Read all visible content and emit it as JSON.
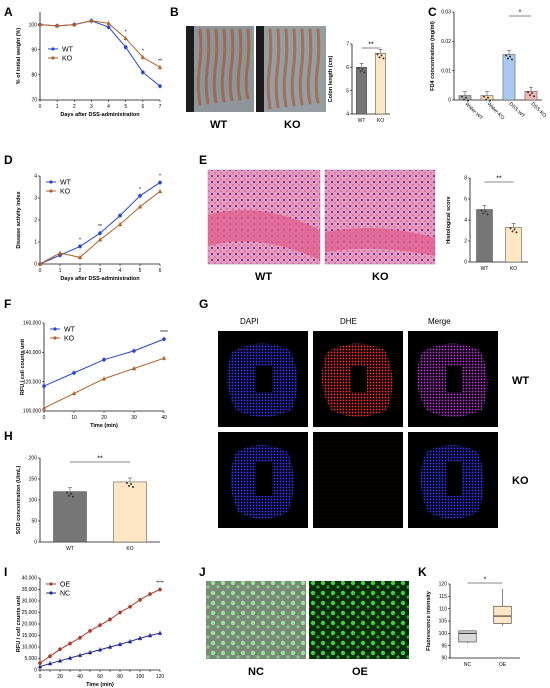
{
  "panels": {
    "A": {
      "label": "A"
    },
    "B": {
      "label": "B"
    },
    "C": {
      "label": "C"
    },
    "D": {
      "label": "D"
    },
    "E": {
      "label": "E"
    },
    "F": {
      "label": "F"
    },
    "G": {
      "label": "G"
    },
    "H": {
      "label": "H"
    },
    "I": {
      "label": "I"
    },
    "J": {
      "label": "J"
    },
    "K": {
      "label": "K"
    }
  },
  "colors": {
    "wt": "#2846c8",
    "ko": "#b0602a",
    "oe": "#a83c2c",
    "nc": "#1e2a90",
    "bar_wt": "#777777",
    "bar_ko": "#fde6c4",
    "dapi": "#2525c8",
    "dhe": "#c83030",
    "merge": "#8a2aa0",
    "he": "#d87aa8",
    "gfp": "#2fb430"
  },
  "photos": {
    "B": {
      "wt_label": "WT",
      "ko_label": "KO"
    },
    "E": {
      "wt_label": "WT",
      "ko_label": "KO"
    },
    "G": {
      "channels": [
        "DAPI",
        "DHE",
        "Merge"
      ],
      "row_labels": [
        "WT",
        "KO"
      ]
    },
    "J": {
      "left_label": "NC",
      "right_label": "OE"
    }
  },
  "chart_data": [
    {
      "id": "A",
      "type": "line",
      "xlabel": "Days after DSS-administration",
      "ylabel": "% of initial weight (%)",
      "x": [
        0,
        1,
        2,
        3,
        4,
        5,
        6,
        7
      ],
      "xlim": [
        0,
        7
      ],
      "ylim": [
        70,
        105
      ],
      "yticks": [
        70,
        80,
        90,
        100
      ],
      "series": [
        {
          "name": "WT",
          "values": [
            100,
            99.5,
            100,
            101.5,
            99,
            91,
            81,
            75.5
          ]
        },
        {
          "name": "KO",
          "values": [
            100,
            99.5,
            100,
            101.5,
            100.5,
            94.5,
            87,
            83
          ]
        }
      ],
      "annotations": [
        {
          "x": 5,
          "text": "*"
        },
        {
          "x": 6,
          "text": "*"
        },
        {
          "x": 7,
          "text": "**"
        }
      ],
      "legend": "center-left"
    },
    {
      "id": "B",
      "type": "bar",
      "categories": [
        "WT",
        "KO"
      ],
      "values": [
        6.0,
        6.6
      ],
      "ylabel": "Colon length (cm)",
      "ylim": [
        4,
        7
      ],
      "yticks": [
        4,
        5,
        6,
        7
      ],
      "annotation": "**"
    },
    {
      "id": "C",
      "type": "bar",
      "categories": [
        "Water-WT",
        "Water-KO",
        "DSS-WT",
        "DSS-KO"
      ],
      "values": [
        0.0015,
        0.0015,
        0.0155,
        0.003
      ],
      "ylabel": "FD4 concentration (mg/ml)",
      "ylim": [
        0,
        0.03
      ],
      "yticks": [
        0,
        0.01,
        0.02,
        0.03
      ],
      "annotation": "*"
    },
    {
      "id": "D",
      "type": "line",
      "xlabel": "Days after DSS-administration",
      "ylabel": "Disease activity index",
      "x": [
        0,
        1,
        2,
        3,
        4,
        5,
        6
      ],
      "xlim": [
        0,
        6
      ],
      "ylim": [
        0,
        4
      ],
      "yticks": [
        0,
        1,
        2,
        3,
        4
      ],
      "series": [
        {
          "name": "WT",
          "values": [
            0,
            0.4,
            0.8,
            1.4,
            2.2,
            3.1,
            3.7
          ]
        },
        {
          "name": "KO",
          "values": [
            0,
            0.5,
            0.3,
            1.1,
            1.8,
            2.6,
            3.3
          ]
        }
      ],
      "annotations": [
        {
          "x": 2,
          "text": "*"
        },
        {
          "x": 3,
          "text": "**"
        },
        {
          "x": 5,
          "text": "*"
        },
        {
          "x": 6,
          "text": "*"
        }
      ],
      "legend": "top-left"
    },
    {
      "id": "E",
      "type": "bar",
      "categories": [
        "WT",
        "KO"
      ],
      "values": [
        5.0,
        3.3
      ],
      "ylabel": "Histological score",
      "ylim": [
        0,
        8
      ],
      "yticks": [
        0,
        2,
        4,
        6,
        8
      ],
      "annotation": "**"
    },
    {
      "id": "F",
      "type": "line",
      "xlabel": "Time (min)",
      "ylabel": "RFU / cell counts unit",
      "x": [
        0,
        10,
        20,
        30,
        40
      ],
      "xlim": [
        0,
        40
      ],
      "ylim": [
        100000,
        160000
      ],
      "yticks": [
        100000,
        120000,
        140000,
        160000
      ],
      "ytick_labels": [
        "100,000",
        "120,000",
        "140,000",
        "160,000"
      ],
      "series": [
        {
          "name": "WT",
          "values": [
            117000,
            126000,
            135000,
            141000,
            149000
          ]
        },
        {
          "name": "KO",
          "values": [
            102000,
            112000,
            122000,
            129000,
            136000
          ]
        }
      ],
      "annotations": [
        {
          "x": 40,
          "text": "****"
        }
      ],
      "legend": "top-left"
    },
    {
      "id": "H",
      "type": "bar",
      "categories": [
        "WT",
        "KO"
      ],
      "values": [
        120,
        143
      ],
      "ylabel": "SOD concentration (U/mL)",
      "ylim": [
        0,
        200
      ],
      "yticks": [
        0,
        50,
        100,
        150,
        200
      ],
      "annotation": "**"
    },
    {
      "id": "I",
      "type": "line",
      "xlabel": "Time (min)",
      "ylabel": "RFU / cell counts unit",
      "x": [
        0,
        10,
        20,
        30,
        40,
        50,
        60,
        70,
        80,
        90,
        100,
        110,
        120
      ],
      "xlim": [
        0,
        120
      ],
      "ylim": [
        0,
        40000
      ],
      "yticks": [
        0,
        5000,
        10000,
        15000,
        20000,
        25000,
        30000,
        35000,
        40000
      ],
      "ytick_labels": [
        "0",
        "5,000",
        "10,000",
        "15,000",
        "20,000",
        "25,000",
        "30,000",
        "35,000",
        "40,000"
      ],
      "series": [
        {
          "name": "OE",
          "values": [
            3000,
            6000,
            9000,
            11500,
            14000,
            17000,
            19500,
            22000,
            25000,
            27500,
            30500,
            33000,
            35000
          ]
        },
        {
          "name": "NC",
          "values": [
            1500,
            2800,
            4000,
            5200,
            6400,
            7600,
            8800,
            10000,
            11200,
            12400,
            13800,
            15000,
            16000
          ]
        }
      ],
      "annotations": [
        {
          "x": 120,
          "text": "****"
        }
      ],
      "legend": "top-left"
    },
    {
      "id": "K",
      "type": "box",
      "categories": [
        "NC",
        "OE"
      ],
      "ylabel": "Fluorescence intensity",
      "ylim": [
        90,
        120
      ],
      "yticks": [
        90,
        95,
        100,
        105,
        110,
        115,
        120
      ],
      "boxes": [
        {
          "min": 96,
          "q1": 96.5,
          "median": 100,
          "q3": 101,
          "max": 101
        },
        {
          "min": 103,
          "q1": 104,
          "median": 107,
          "q3": 111,
          "max": 118
        }
      ],
      "annotation": "*"
    }
  ]
}
